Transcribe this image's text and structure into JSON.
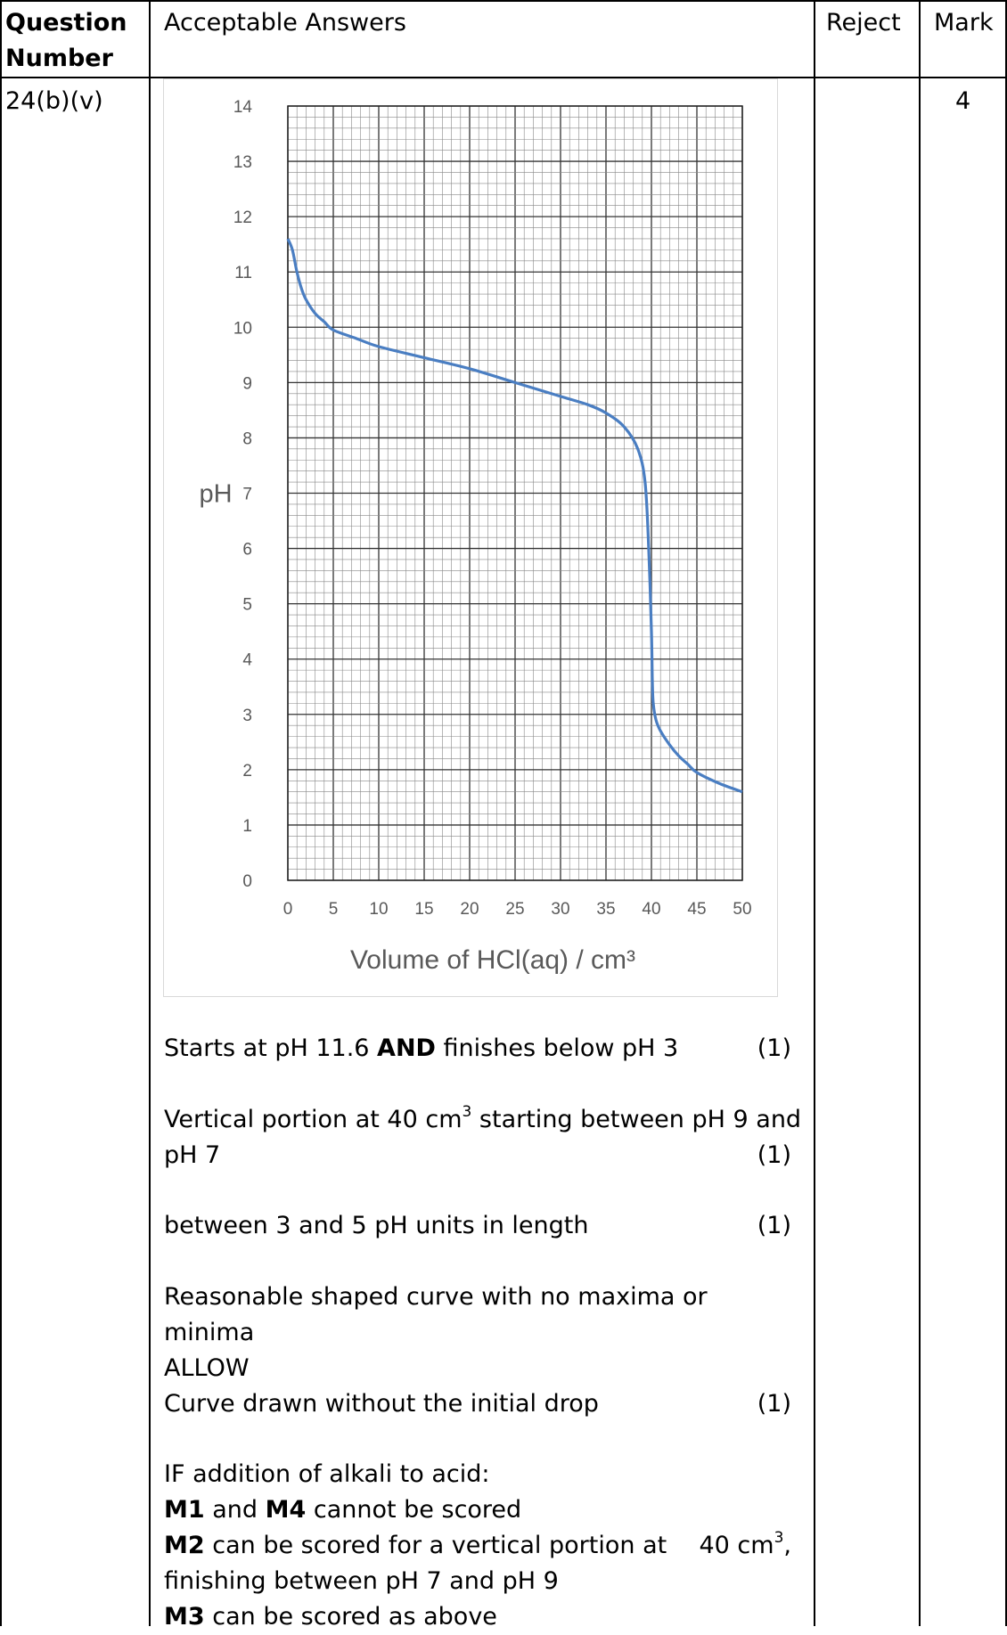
{
  "header": {
    "question_number": "Question Number",
    "acceptable_answers": "Acceptable Answers",
    "reject": "Reject",
    "mark": "Mark"
  },
  "row": {
    "question": "24(b)(v)",
    "mark": "4"
  },
  "chart_data": {
    "type": "line",
    "xlabel": "Volume of HCl(aq) / cm³",
    "ylabel": "pH",
    "xlim": [
      0,
      50
    ],
    "ylim": [
      0,
      14
    ],
    "x_ticks": [
      "0",
      "5",
      "10",
      "15",
      "20",
      "25",
      "30",
      "35",
      "40",
      "45",
      "50"
    ],
    "y_ticks": [
      "0",
      "1",
      "2",
      "3",
      "4",
      "5",
      "6",
      "7",
      "8",
      "9",
      "10",
      "11",
      "12",
      "13",
      "14"
    ],
    "grid": true,
    "series": [
      {
        "color": "#4a7ec2",
        "x": [
          0,
          0.5,
          1,
          1.5,
          2,
          3,
          4,
          5,
          7.5,
          10,
          15,
          20,
          25,
          30,
          33,
          35,
          37,
          38.5,
          39.3,
          39.7,
          40,
          40.1,
          40.2,
          40.5,
          41,
          42,
          43,
          44,
          45,
          47.5,
          50
        ],
        "y": [
          11.6,
          11.4,
          11.0,
          10.7,
          10.5,
          10.25,
          10.1,
          9.95,
          9.8,
          9.65,
          9.45,
          9.25,
          9.0,
          8.75,
          8.6,
          8.45,
          8.2,
          7.8,
          7.2,
          6.0,
          4.5,
          3.6,
          3.2,
          2.9,
          2.7,
          2.45,
          2.25,
          2.1,
          1.95,
          1.75,
          1.6
        ]
      }
    ]
  },
  "answers": {
    "p1_a": "Starts at pH 11.6 ",
    "p1_b": "AND",
    "p1_c": " finishes below pH 3",
    "p1_mark": "(1)",
    "p2_a": "Vertical portion at 40 cm",
    "p2_sup": "3",
    "p2_b": " starting between pH 9 and",
    "p2_c": "pH 7",
    "p2_mark": "(1)",
    "p3": "between 3 and 5 pH units in length",
    "p3_mark": "(1)",
    "p4_a": "Reasonable shaped curve with no maxima or",
    "p4_b": "minima",
    "p4_c": "ALLOW",
    "p4_d": "Curve drawn without the initial drop",
    "p4_mark": "(1)",
    "p5_a": "IF addition of alkali to acid:",
    "p5_m1": "M1",
    "p5_and": " and ",
    "p5_m4": "M4",
    "p5_b": " cannot be scored",
    "p5_m2": "M2",
    "p5_c": " can be scored for a vertical portion at",
    "p5_vol": "40 cm",
    "p5_vol_sup": "3",
    "p5_comma": ",",
    "p5_d": "finishing between pH 7 and pH 9",
    "p5_m3": "M3",
    "p5_e": " can be scored as above"
  }
}
